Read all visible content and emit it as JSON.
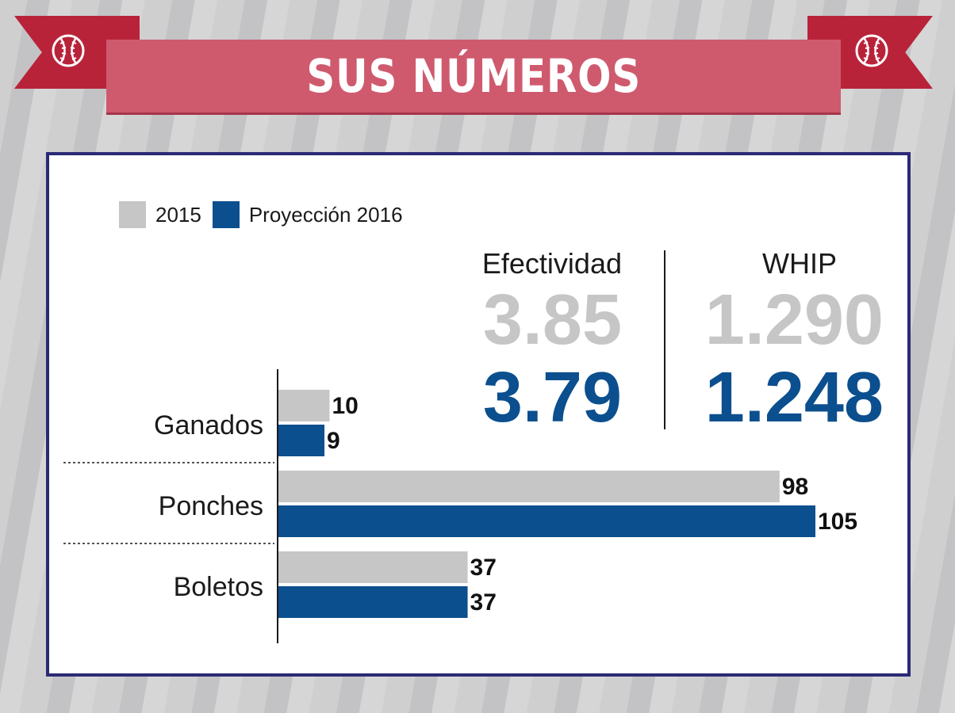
{
  "header": {
    "title": "SUS NÚMEROS"
  },
  "legend": [
    {
      "label": "2015",
      "color": "#c6c6c6"
    },
    {
      "label": "Proyección 2016",
      "color": "#0b4f8e"
    }
  ],
  "stats": {
    "efectividad": {
      "label": "Efectividad",
      "v2015": "3.85",
      "v2016": "3.79"
    },
    "whip": {
      "label": "WHIP",
      "v2015": "1.290",
      "v2016": "1.248"
    }
  },
  "chart_data": {
    "type": "bar",
    "orientation": "horizontal",
    "categories": [
      "Ganados",
      "Ponches",
      "Boletos"
    ],
    "series": [
      {
        "name": "2015",
        "values": [
          10,
          98,
          37
        ],
        "color": "#c6c6c6"
      },
      {
        "name": "Proyección 2016",
        "values": [
          9,
          105,
          37
        ],
        "color": "#0b4f8e"
      }
    ],
    "xlim": [
      0,
      105
    ],
    "grid": false,
    "legend_position": "top-left"
  }
}
